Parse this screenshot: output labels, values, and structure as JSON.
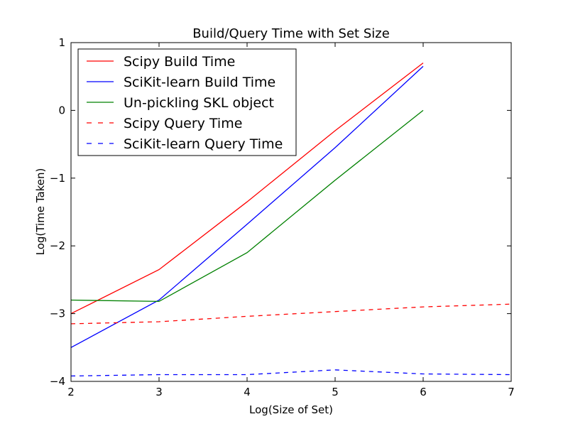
{
  "chart_data": {
    "type": "line",
    "title": "Build/Query Time with Set Size",
    "xlabel": "Log(Size of Set)",
    "ylabel": "Log(Time Taken)",
    "xlim": [
      2,
      7
    ],
    "ylim": [
      -4,
      1
    ],
    "xticks": [
      "2",
      "3",
      "4",
      "5",
      "6",
      "7"
    ],
    "yticks": [
      "1",
      "0",
      "−1",
      "−2",
      "−3",
      "−4"
    ],
    "legend_position": "upper-left",
    "grid": false,
    "series": [
      {
        "name": "Scipy Build Time",
        "color": "#ff0000",
        "style": "solid",
        "x": [
          2,
          3,
          4,
          5,
          6
        ],
        "y": [
          -3.0,
          -2.35,
          -1.35,
          -0.3,
          0.7
        ]
      },
      {
        "name": "SciKit-learn Build Time",
        "color": "#0000ff",
        "style": "solid",
        "x": [
          2,
          3,
          4,
          5,
          6
        ],
        "y": [
          -3.5,
          -2.8,
          -1.68,
          -0.55,
          0.65
        ]
      },
      {
        "name": "Un-pickling SKL object",
        "color": "#008000",
        "style": "solid",
        "x": [
          2,
          3,
          4,
          5,
          6
        ],
        "y": [
          -2.8,
          -2.82,
          -2.1,
          -1.03,
          0.0
        ]
      },
      {
        "name": "Scipy Query Time",
        "color": "#ff0000",
        "style": "dashed",
        "x": [
          2,
          3,
          4,
          5,
          6,
          7
        ],
        "y": [
          -3.15,
          -3.12,
          -3.04,
          -2.97,
          -2.9,
          -2.86
        ]
      },
      {
        "name": "SciKit-learn Query Time",
        "color": "#0000ff",
        "style": "dashed",
        "x": [
          2,
          3,
          4,
          5,
          6,
          7
        ],
        "y": [
          -3.92,
          -3.9,
          -3.9,
          -3.83,
          -3.89,
          -3.9
        ]
      }
    ]
  }
}
